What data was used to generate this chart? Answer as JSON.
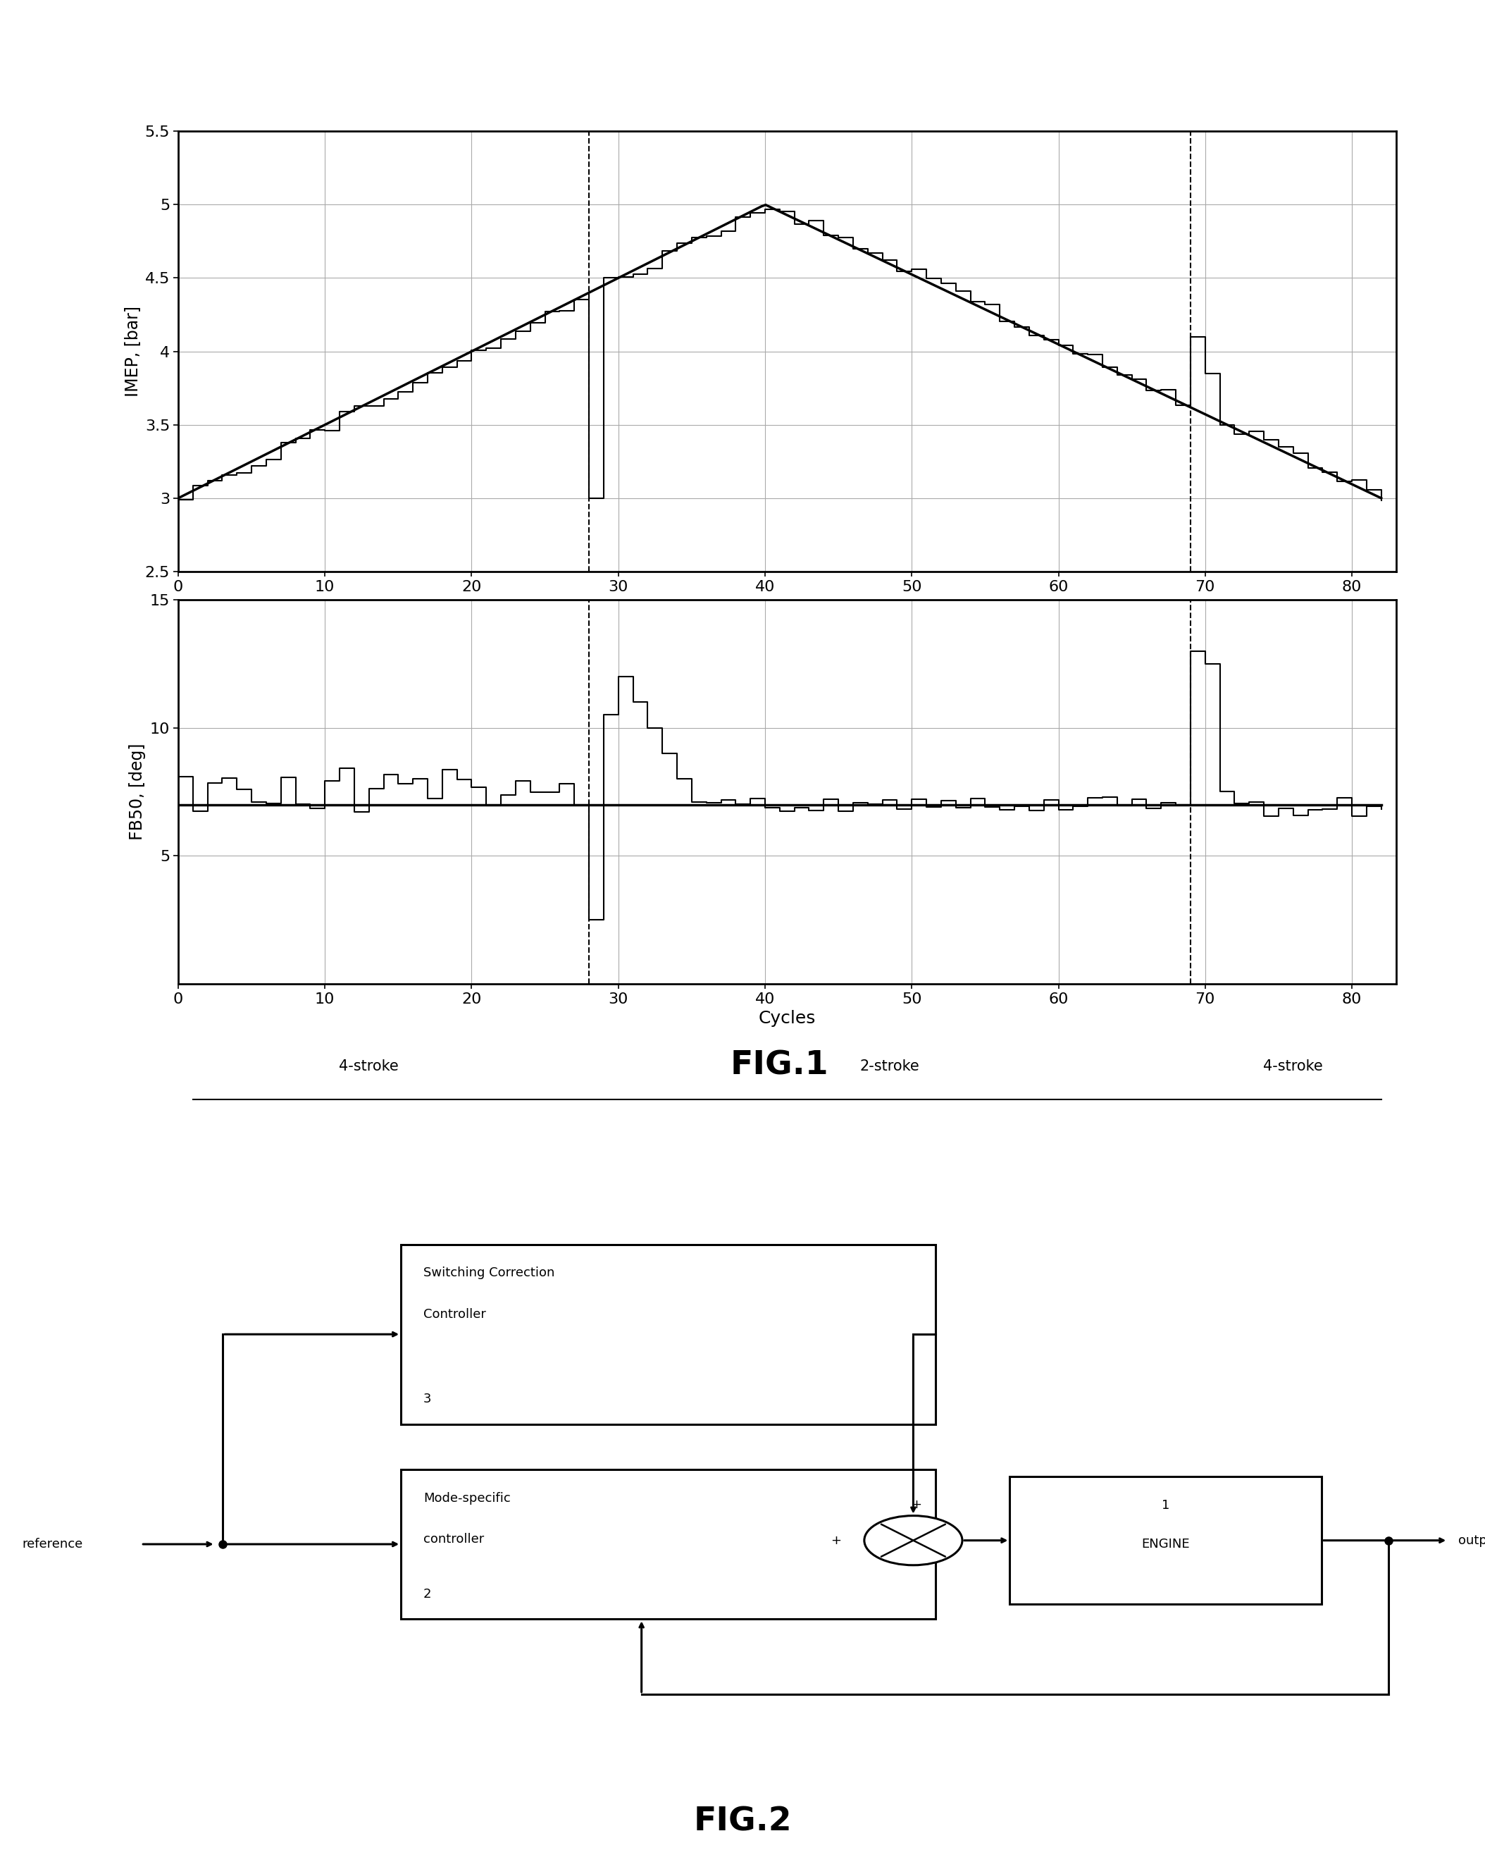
{
  "fig1_title": "FIG.1",
  "fig2_title": "FIG.2",
  "switch1": 28,
  "switch2": 69,
  "imep_ylim": [
    2.5,
    5.5
  ],
  "imep_yticks": [
    2.5,
    3.0,
    3.5,
    4.0,
    4.5,
    5.0,
    5.5
  ],
  "fb50_ylim": [
    0,
    15
  ],
  "fb50_yticks": [
    5,
    10,
    15
  ],
  "xlim": [
    0,
    83
  ],
  "xticks": [
    0,
    10,
    20,
    30,
    40,
    50,
    60,
    70,
    80
  ],
  "xlabel": "Cycles",
  "imep_ylabel": "IMEP, [bar]",
  "fb50_ylabel": "FB50, [deg]",
  "bg_color": "#ffffff",
  "line_color": "#000000",
  "dashed_color": "#000000",
  "grid_color": "#aaaaaa",
  "stroke_label_4s_left": "4-stroke",
  "stroke_label_2s": "2-stroke",
  "stroke_label_4s_right": "4-stroke",
  "scc_label1": "Switching Correction",
  "scc_label2": "Controller",
  "scc_num": "3",
  "msc_label1": "Mode-specific",
  "msc_label2": "controller",
  "msc_num": "2",
  "eng_label": "ENGINE",
  "eng_num": "1",
  "ref_label": "reference",
  "out_label": "output"
}
